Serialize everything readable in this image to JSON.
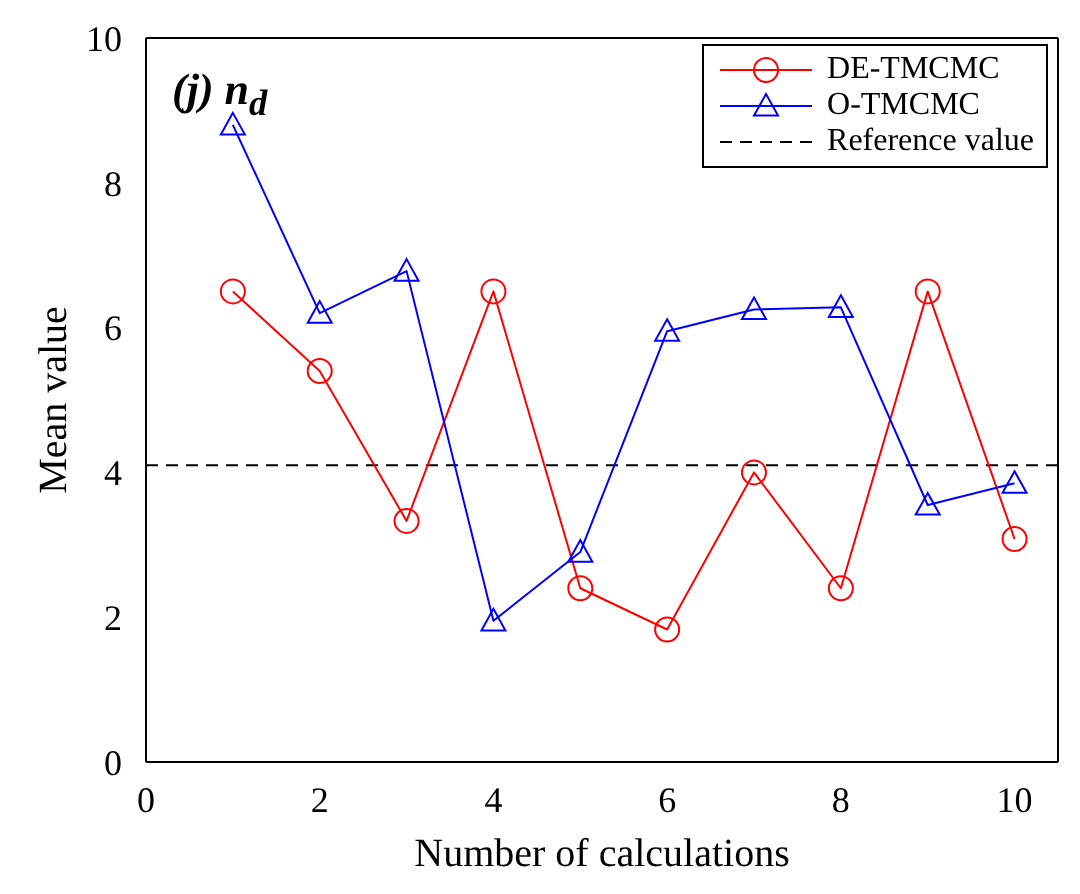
{
  "chart_data": {
    "type": "line",
    "xlabel": "Number of calculations",
    "ylabel": "Mean value",
    "annotations": [
      "(j) n$_{d}$"
    ],
    "x": [
      1,
      2,
      3,
      4,
      5,
      6,
      7,
      8,
      9,
      10
    ],
    "series": [
      {
        "name": "DE-TMCMC",
        "color": "#ff0000",
        "marker": "circle",
        "values": [
          6.5,
          5.4,
          3.33,
          6.5,
          2.4,
          1.83,
          4.0,
          2.4,
          6.5,
          3.08
        ]
      },
      {
        "name": "O-TMCMC",
        "color": "#0000ff",
        "marker": "triangle",
        "values": [
          8.8,
          6.2,
          6.78,
          1.95,
          2.9,
          5.95,
          6.25,
          6.28,
          3.55,
          3.85
        ]
      }
    ],
    "ref_lines": [
      {
        "axis": "y",
        "value": 4.1,
        "label": "Reference value",
        "color": "#000000",
        "line_style": "dashed"
      }
    ],
    "xlim": [
      0,
      10.5
    ],
    "xticks": [
      0,
      2,
      4,
      6,
      8,
      10
    ],
    "ylim": [
      0,
      10
    ],
    "yticks": [
      0,
      2,
      4,
      6,
      8,
      10
    ],
    "grid": false,
    "legend": "top right",
    "line_style": "solid"
  }
}
